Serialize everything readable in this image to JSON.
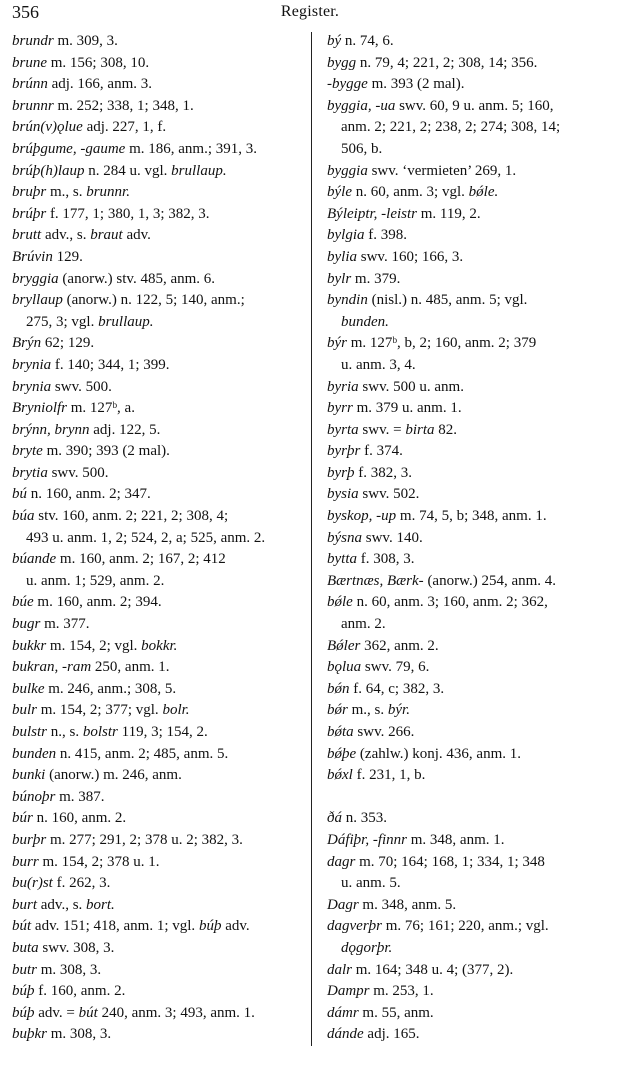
{
  "header": {
    "page_number": "356",
    "running_title": "Register."
  },
  "columns": [
    {
      "groups": [
        [
          {
            "lines": [
              [
                {
                  "i": "brundr"
                },
                " m. 309, 3."
              ]
            ]
          },
          {
            "lines": [
              [
                {
                  "i": "brune"
                },
                " m. 156; 308, 10."
              ]
            ]
          },
          {
            "lines": [
              [
                {
                  "i": "brúnn"
                },
                " adj. 166, anm. 3."
              ]
            ]
          },
          {
            "lines": [
              [
                {
                  "i": "brunnr"
                },
                " m. 252; 338, 1; 348, 1."
              ]
            ]
          },
          {
            "lines": [
              [
                {
                  "i": "brún(v)ǫlue"
                },
                " adj. 227, 1, f."
              ]
            ]
          },
          {
            "lines": [
              [
                {
                  "i": "brúþgume, -gaume"
                },
                " m. 186, anm.; 391, 3."
              ]
            ]
          },
          {
            "lines": [
              [
                {
                  "i": "brúþ(h)laup"
                },
                " n. 284 u. vgl. ",
                {
                  "i": "brullaup."
                }
              ]
            ]
          },
          {
            "lines": [
              [
                {
                  "i": "bruþr"
                },
                " m., s. ",
                {
                  "i": "brunnr."
                }
              ]
            ]
          },
          {
            "lines": [
              [
                {
                  "i": "brúþr"
                },
                " f. 177, 1; 380, 1, 3; 382, 3."
              ]
            ]
          },
          {
            "lines": [
              [
                {
                  "i": "brutt"
                },
                " adv., s. ",
                {
                  "i": "braut"
                },
                " adv."
              ]
            ]
          },
          {
            "lines": [
              [
                {
                  "i": "Brúvin"
                },
                " 129."
              ]
            ]
          },
          {
            "lines": [
              [
                {
                  "i": "bryggia"
                },
                " (anorw.) stv. 485, anm. 6."
              ]
            ]
          },
          {
            "lines": [
              [
                {
                  "i": "bryllaup"
                },
                " (anorw.) n. 122, 5; 140, anm.;"
              ],
              [
                "275, 3; vgl. ",
                {
                  "i": "brullaup."
                }
              ]
            ]
          },
          {
            "lines": [
              [
                {
                  "i": "Brýn"
                },
                " 62; 129."
              ]
            ]
          },
          {
            "lines": [
              [
                {
                  "i": "brynia"
                },
                " f. 140; 344, 1; 399."
              ]
            ]
          },
          {
            "lines": [
              [
                {
                  "i": "brynia"
                },
                " swv. 500."
              ]
            ]
          },
          {
            "lines": [
              [
                {
                  "i": "Bryniolfr"
                },
                " m. 127ᵇ, a."
              ]
            ]
          },
          {
            "lines": [
              [
                {
                  "i": "brýnn, brynn"
                },
                " adj. 122, 5."
              ]
            ]
          },
          {
            "lines": [
              [
                {
                  "i": "bryte"
                },
                " m. 390; 393 (2 mal)."
              ]
            ]
          },
          {
            "lines": [
              [
                {
                  "i": "brytia"
                },
                " swv. 500."
              ]
            ]
          },
          {
            "lines": [
              [
                {
                  "i": "bú"
                },
                " n. 160, anm. 2; 347."
              ]
            ]
          },
          {
            "lines": [
              [
                {
                  "i": "búa"
                },
                " stv. 160, anm. 2; 221, 2; 308, 4;"
              ],
              [
                "493 u. anm. 1, 2; 524, 2, a; 525, anm. 2."
              ]
            ]
          },
          {
            "lines": [
              [
                {
                  "i": "búande"
                },
                " m. 160, anm. 2; 167, 2; 412"
              ],
              [
                "u. anm. 1; 529, anm. 2."
              ]
            ]
          },
          {
            "lines": [
              [
                {
                  "i": "búe"
                },
                " m. 160, anm. 2; 394."
              ]
            ]
          },
          {
            "lines": [
              [
                {
                  "i": "bugr"
                },
                " m. 377."
              ]
            ]
          },
          {
            "lines": [
              [
                {
                  "i": "bukkr"
                },
                " m. 154, 2; vgl. ",
                {
                  "i": "bokkr."
                }
              ]
            ]
          },
          {
            "lines": [
              [
                {
                  "i": "bukran, -ram"
                },
                " 250, anm. 1."
              ]
            ]
          },
          {
            "lines": [
              [
                {
                  "i": "bulke"
                },
                " m. 246, anm.; 308, 5."
              ]
            ]
          },
          {
            "lines": [
              [
                {
                  "i": "bulr"
                },
                " m. 154, 2; 377; vgl. ",
                {
                  "i": "bolr."
                }
              ]
            ]
          },
          {
            "lines": [
              [
                {
                  "i": "bulstr"
                },
                " n., s. ",
                {
                  "i": "bolstr"
                },
                " 119, 3; 154, 2."
              ]
            ]
          },
          {
            "lines": [
              [
                {
                  "i": "bunden"
                },
                " n. 415, anm. 2; 485, anm. 5."
              ]
            ]
          },
          {
            "lines": [
              [
                {
                  "i": "bunki"
                },
                " (anorw.) m. 246, anm."
              ]
            ]
          },
          {
            "lines": [
              [
                {
                  "i": "búnoþr"
                },
                " m. 387."
              ]
            ]
          },
          {
            "lines": [
              [
                {
                  "i": "búr"
                },
                " n. 160, anm. 2."
              ]
            ]
          },
          {
            "lines": [
              [
                {
                  "i": "burþr"
                },
                " m. 277; 291, 2; 378 u. 2; 382, 3."
              ]
            ]
          },
          {
            "lines": [
              [
                {
                  "i": "burr"
                },
                " m. 154, 2; 378 u. 1."
              ]
            ]
          },
          {
            "lines": [
              [
                {
                  "i": "bu(r)st"
                },
                " f. 262, 3."
              ]
            ]
          },
          {
            "lines": [
              [
                {
                  "i": "burt"
                },
                " adv., s. ",
                {
                  "i": "bort."
                }
              ]
            ]
          },
          {
            "lines": [
              [
                {
                  "i": "bút"
                },
                " adv. 151; 418, anm. 1; vgl. ",
                {
                  "i": "búþ"
                },
                " adv."
              ]
            ]
          },
          {
            "lines": [
              [
                {
                  "i": "buta"
                },
                " swv. 308, 3."
              ]
            ]
          },
          {
            "lines": [
              [
                {
                  "i": "butr"
                },
                " m. 308, 3."
              ]
            ]
          },
          {
            "lines": [
              [
                {
                  "i": "búþ"
                },
                " f. 160, anm. 2."
              ]
            ]
          },
          {
            "lines": [
              [
                {
                  "i": "búþ"
                },
                " adv. = ",
                {
                  "i": "bút"
                },
                " 240, anm. 3; 493, anm. 1."
              ]
            ]
          },
          {
            "lines": [
              [
                {
                  "i": "buþkr"
                },
                " m. 308, 3."
              ]
            ]
          }
        ]
      ]
    },
    {
      "groups": [
        [
          {
            "lines": [
              [
                {
                  "i": "bý"
                },
                " n. 74, 6."
              ]
            ]
          },
          {
            "lines": [
              [
                {
                  "i": "bygg"
                },
                " n. 79, 4; 221, 2; 308, 14; 356."
              ]
            ]
          },
          {
            "lines": [
              [
                {
                  "i": "-bygge"
                },
                " m. 393 (2 mal)."
              ]
            ]
          },
          {
            "lines": [
              [
                {
                  "i": "byggia, -ua"
                },
                " swv. 60, 9 u. anm. 5; 160,"
              ],
              [
                "anm. 2; 221, 2; 238, 2; 274; 308, 14;"
              ],
              [
                "506, b."
              ]
            ]
          },
          {
            "lines": [
              [
                {
                  "i": "byggia"
                },
                " swv. ‘vermieten’ 269, 1."
              ]
            ]
          },
          {
            "lines": [
              [
                {
                  "i": "býle"
                },
                " n. 60, anm. 3; vgl. ",
                {
                  "i": "bǿle."
                }
              ]
            ]
          },
          {
            "lines": [
              [
                {
                  "i": "Býleiptr, -leistr"
                },
                " m. 119, 2."
              ]
            ]
          },
          {
            "lines": [
              [
                {
                  "i": "bylgia"
                },
                " f. 398."
              ]
            ]
          },
          {
            "lines": [
              [
                {
                  "i": "bylia"
                },
                " swv. 160; 166, 3."
              ]
            ]
          },
          {
            "lines": [
              [
                {
                  "i": "bylr"
                },
                " m. 379."
              ]
            ]
          },
          {
            "lines": [
              [
                {
                  "i": "byndin"
                },
                " (nisl.) n. 485, anm. 5; vgl."
              ],
              [
                {
                  "i": "bunden."
                }
              ]
            ]
          },
          {
            "lines": [
              [
                {
                  "i": "býr"
                },
                " m. 127ᵇ, b, 2; 160, anm. 2; 379"
              ],
              [
                "u. anm. 3, 4."
              ]
            ]
          },
          {
            "lines": [
              [
                {
                  "i": "byria"
                },
                " swv. 500 u. anm."
              ]
            ]
          },
          {
            "lines": [
              [
                {
                  "i": "byrr"
                },
                " m. 379 u. anm. 1."
              ]
            ]
          },
          {
            "lines": [
              [
                {
                  "i": "byrta"
                },
                " swv. = ",
                {
                  "i": "birta"
                },
                " 82."
              ]
            ]
          },
          {
            "lines": [
              [
                {
                  "i": "byrþr"
                },
                " f. 374."
              ]
            ]
          },
          {
            "lines": [
              [
                {
                  "i": "byrþ"
                },
                " f. 382, 3."
              ]
            ]
          },
          {
            "lines": [
              [
                {
                  "i": "bysia"
                },
                " swv. 502."
              ]
            ]
          },
          {
            "lines": [
              [
                {
                  "i": "byskop, -up"
                },
                " m. 74, 5, b; 348, anm. 1."
              ]
            ]
          },
          {
            "lines": [
              [
                {
                  "i": "býsna"
                },
                " swv. 140."
              ]
            ]
          },
          {
            "lines": [
              [
                {
                  "i": "bytta"
                },
                " f. 308, 3."
              ]
            ]
          },
          {
            "lines": [
              [
                {
                  "i": "Bærtnæs, Bærk-"
                },
                " (anorw.) 254, anm. 4."
              ]
            ]
          },
          {
            "lines": [
              [
                {
                  "i": "bǿle"
                },
                " n. 60, anm. 3; 160, anm. 2; 362,"
              ],
              [
                "anm. 2."
              ]
            ]
          },
          {
            "lines": [
              [
                {
                  "i": "Bǿler"
                },
                " 362, anm. 2."
              ]
            ]
          },
          {
            "lines": [
              [
                {
                  "i": "bǫlua"
                },
                " swv. 79, 6."
              ]
            ]
          },
          {
            "lines": [
              [
                {
                  "i": "bǿn"
                },
                " f. 64, c; 382, 3."
              ]
            ]
          },
          {
            "lines": [
              [
                {
                  "i": "bǿr"
                },
                " m., s. ",
                {
                  "i": "býr."
                }
              ]
            ]
          },
          {
            "lines": [
              [
                {
                  "i": "bǿta"
                },
                " swv. 266."
              ]
            ]
          },
          {
            "lines": [
              [
                {
                  "i": "bǿþe"
                },
                " (zahlw.) konj. 436, anm. 1."
              ]
            ]
          },
          {
            "lines": [
              [
                {
                  "i": "bǿxl"
                },
                " f. 231, 1, b."
              ]
            ]
          }
        ],
        [
          {
            "lines": [
              [
                {
                  "i": "ðá"
                },
                " n. 353."
              ]
            ]
          },
          {
            "lines": [
              [
                {
                  "i": "Dáfiþr, -finnr"
                },
                " m. 348, anm. 1."
              ]
            ]
          },
          {
            "lines": [
              [
                {
                  "i": "dagr"
                },
                " m. 70; 164; 168, 1; 334, 1; 348"
              ],
              [
                "u. anm. 5."
              ]
            ]
          },
          {
            "lines": [
              [
                {
                  "i": "Dagr"
                },
                " m. 348, anm. 5."
              ]
            ]
          },
          {
            "lines": [
              [
                {
                  "i": "dagverþr"
                },
                " m. 76; 161; 220, anm.; vgl."
              ],
              [
                {
                  "i": "dǫgorþr."
                }
              ]
            ]
          },
          {
            "lines": [
              [
                {
                  "i": "dalr"
                },
                " m. 164; 348 u. 4; (377, 2)."
              ]
            ]
          },
          {
            "lines": [
              [
                {
                  "i": "Dampr"
                },
                " m. 253, 1."
              ]
            ]
          },
          {
            "lines": [
              [
                {
                  "i": "dámr"
                },
                " m. 55, anm."
              ]
            ]
          },
          {
            "lines": [
              [
                {
                  "i": "dánde"
                },
                " adj. 165."
              ]
            ]
          }
        ]
      ]
    }
  ]
}
